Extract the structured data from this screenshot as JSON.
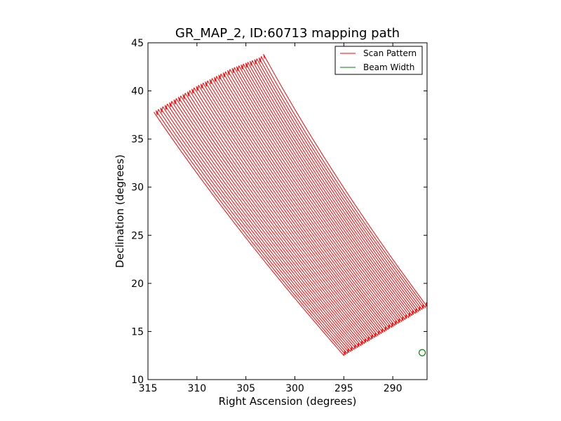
{
  "chart_data": {
    "type": "line",
    "title": "GR_MAP_2, ID:60713 mapping path",
    "xlabel": "Right Ascension (degrees)",
    "ylabel": "Declination (degrees)",
    "xlim": [
      315,
      286.5
    ],
    "ylim": [
      10,
      45
    ],
    "x_inverted": true,
    "xticks": [
      315,
      310,
      305,
      300,
      295,
      290
    ],
    "yticks": [
      10,
      15,
      20,
      25,
      30,
      35,
      40,
      45
    ],
    "grid": false,
    "legend_position": "top-right",
    "series": [
      {
        "name": "Scan Pattern",
        "type": "line",
        "color": "#ff0000",
        "pattern": "raster",
        "sweeps": 50,
        "top_edge": [
          [
            314.4,
            37.8
          ],
          [
            310.0,
            40.5
          ],
          [
            306.5,
            42.3
          ],
          [
            303.5,
            43.5
          ],
          [
            303.2,
            43.8
          ]
        ],
        "bottom_edge": [
          [
            295.0,
            12.5
          ],
          [
            292.0,
            14.3
          ],
          [
            289.0,
            16.1
          ],
          [
            286.5,
            17.6
          ]
        ]
      },
      {
        "name": "Beam Width",
        "type": "marker",
        "color": "#008000",
        "x": 287.0,
        "y": 12.8
      }
    ]
  }
}
